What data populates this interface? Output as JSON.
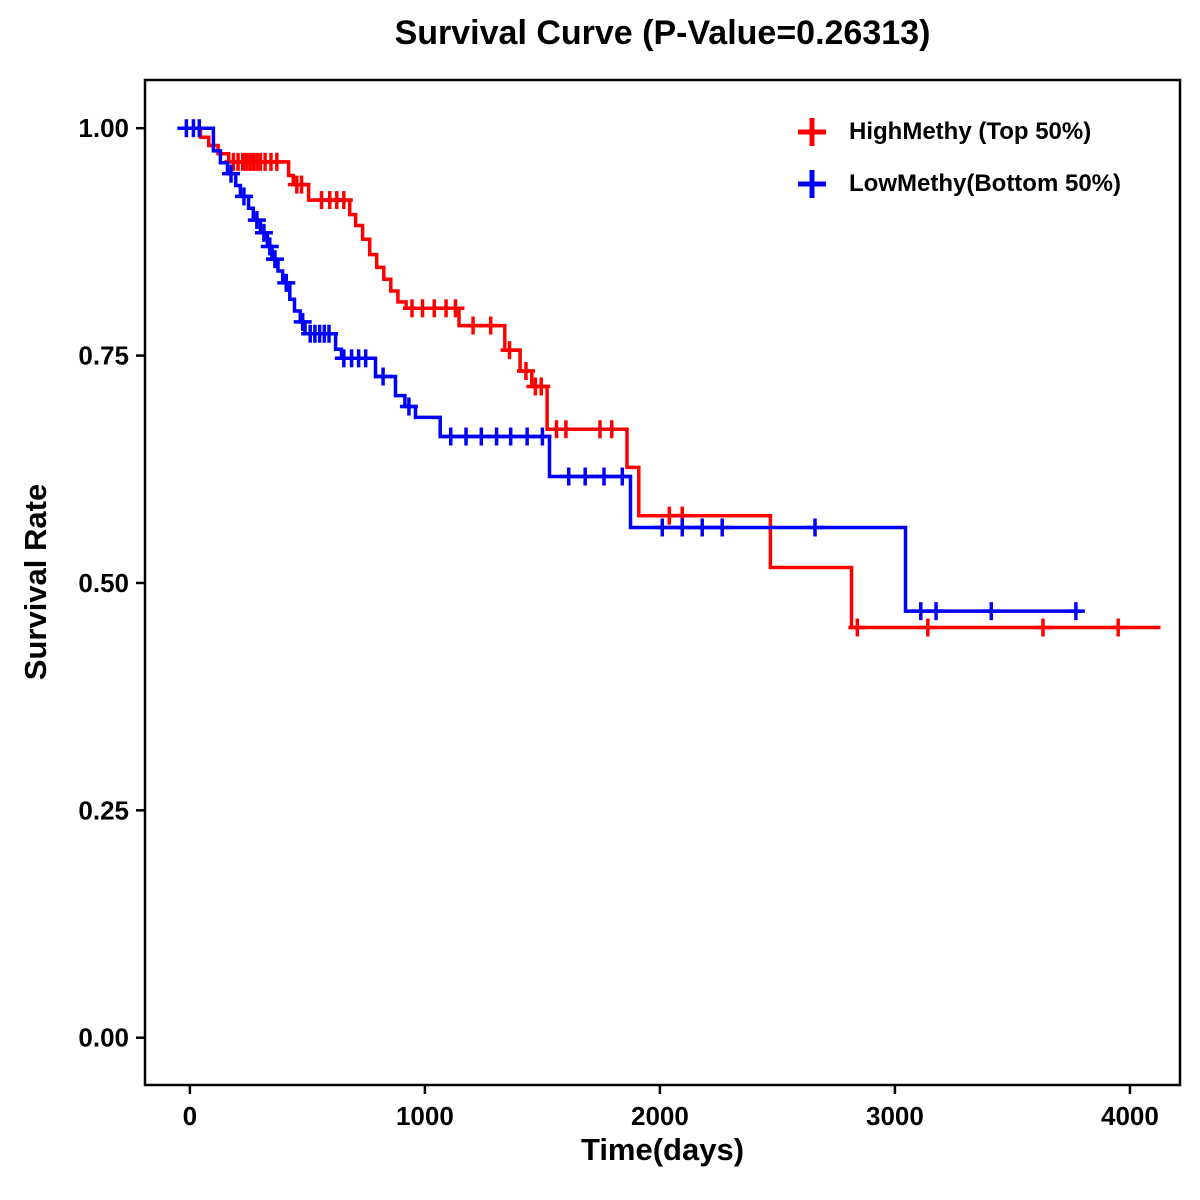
{
  "chart_data": {
    "type": "line",
    "subtype": "kaplan-meier-step",
    "title": "Survival Curve (P-Value=0.26313)",
    "p_value": "0.26313",
    "xlabel": "Time(days)",
    "ylabel": "Survival Rate",
    "xlim": [
      -191,
      4213
    ],
    "ylim": [
      -0.052,
      1.053
    ],
    "grid": false,
    "legend_position": "top-right",
    "xticks": [
      {
        "value": 0,
        "label": "0"
      },
      {
        "value": 1000,
        "label": "1000"
      },
      {
        "value": 2000,
        "label": "2000"
      },
      {
        "value": 3000,
        "label": "3000"
      },
      {
        "value": 4000,
        "label": "4000"
      }
    ],
    "yticks": [
      {
        "value": 0.0,
        "label": "0.00"
      },
      {
        "value": 0.25,
        "label": "0.25"
      },
      {
        "value": 0.5,
        "label": "0.50"
      },
      {
        "value": 0.75,
        "label": "0.75"
      },
      {
        "value": 1.0,
        "label": "1.00"
      }
    ],
    "series": [
      {
        "id": "highmethy",
        "name": "HighMethy (Top 50%)",
        "color": "#FF0000",
        "steps": [
          [
            0,
            1.0
          ],
          [
            45,
            0.99
          ],
          [
            80,
            0.981
          ],
          [
            120,
            0.972
          ],
          [
            165,
            0.963
          ],
          [
            420,
            0.948
          ],
          [
            440,
            0.938
          ],
          [
            505,
            0.921
          ],
          [
            680,
            0.905
          ],
          [
            705,
            0.893
          ],
          [
            735,
            0.878
          ],
          [
            765,
            0.861
          ],
          [
            795,
            0.847
          ],
          [
            825,
            0.834
          ],
          [
            855,
            0.821
          ],
          [
            885,
            0.809
          ],
          [
            920,
            0.802
          ],
          [
            1145,
            0.783
          ],
          [
            1340,
            0.756
          ],
          [
            1405,
            0.733
          ],
          [
            1455,
            0.716
          ],
          [
            1520,
            0.669
          ],
          [
            1860,
            0.627
          ],
          [
            1910,
            0.574
          ],
          [
            2470,
            0.517
          ],
          [
            2815,
            0.451
          ],
          [
            4130,
            0.451
          ]
        ],
        "censors": [
          [
            185,
            0.963
          ],
          [
            205,
            0.963
          ],
          [
            225,
            0.963
          ],
          [
            240,
            0.963
          ],
          [
            255,
            0.963
          ],
          [
            270,
            0.963
          ],
          [
            285,
            0.963
          ],
          [
            300,
            0.963
          ],
          [
            320,
            0.963
          ],
          [
            345,
            0.963
          ],
          [
            370,
            0.963
          ],
          [
            455,
            0.938
          ],
          [
            475,
            0.938
          ],
          [
            560,
            0.921
          ],
          [
            595,
            0.921
          ],
          [
            625,
            0.921
          ],
          [
            655,
            0.921
          ],
          [
            945,
            0.802
          ],
          [
            990,
            0.802
          ],
          [
            1040,
            0.802
          ],
          [
            1090,
            0.802
          ],
          [
            1130,
            0.802
          ],
          [
            1205,
            0.783
          ],
          [
            1280,
            0.783
          ],
          [
            1360,
            0.756
          ],
          [
            1430,
            0.733
          ],
          [
            1470,
            0.716
          ],
          [
            1495,
            0.716
          ],
          [
            1560,
            0.669
          ],
          [
            1600,
            0.669
          ],
          [
            1745,
            0.669
          ],
          [
            1795,
            0.669
          ],
          [
            2040,
            0.574
          ],
          [
            2095,
            0.574
          ],
          [
            2840,
            0.451
          ],
          [
            3140,
            0.451
          ],
          [
            3630,
            0.451
          ],
          [
            3950,
            0.451
          ]
        ]
      },
      {
        "id": "lowmethy",
        "name": "LowMethy(Bottom 50%)",
        "color": "#0000FF",
        "steps": [
          [
            0,
            1.0
          ],
          [
            100,
            0.975
          ],
          [
            130,
            0.962
          ],
          [
            160,
            0.95
          ],
          [
            195,
            0.937
          ],
          [
            215,
            0.925
          ],
          [
            250,
            0.912
          ],
          [
            270,
            0.899
          ],
          [
            300,
            0.885
          ],
          [
            330,
            0.87
          ],
          [
            350,
            0.856
          ],
          [
            375,
            0.843
          ],
          [
            395,
            0.83
          ],
          [
            425,
            0.812
          ],
          [
            445,
            0.799
          ],
          [
            470,
            0.787
          ],
          [
            490,
            0.774
          ],
          [
            620,
            0.757
          ],
          [
            645,
            0.747
          ],
          [
            790,
            0.727
          ],
          [
            875,
            0.706
          ],
          [
            915,
            0.694
          ],
          [
            960,
            0.682
          ],
          [
            1065,
            0.661
          ],
          [
            1530,
            0.617
          ],
          [
            1875,
            0.561
          ],
          [
            3045,
            0.469
          ],
          [
            3790,
            0.469
          ]
        ],
        "censors": [
          [
            -15,
            1.0
          ],
          [
            15,
            1.0
          ],
          [
            40,
            1.0
          ],
          [
            175,
            0.95
          ],
          [
            230,
            0.925
          ],
          [
            285,
            0.899
          ],
          [
            315,
            0.885
          ],
          [
            340,
            0.87
          ],
          [
            362,
            0.856
          ],
          [
            410,
            0.83
          ],
          [
            480,
            0.787
          ],
          [
            512,
            0.774
          ],
          [
            532,
            0.774
          ],
          [
            552,
            0.774
          ],
          [
            572,
            0.774
          ],
          [
            592,
            0.774
          ],
          [
            655,
            0.747
          ],
          [
            688,
            0.747
          ],
          [
            718,
            0.747
          ],
          [
            748,
            0.747
          ],
          [
            822,
            0.727
          ],
          [
            932,
            0.694
          ],
          [
            1110,
            0.661
          ],
          [
            1175,
            0.661
          ],
          [
            1240,
            0.661
          ],
          [
            1305,
            0.661
          ],
          [
            1365,
            0.661
          ],
          [
            1435,
            0.661
          ],
          [
            1500,
            0.661
          ],
          [
            1612,
            0.617
          ],
          [
            1682,
            0.617
          ],
          [
            1762,
            0.617
          ],
          [
            1840,
            0.617
          ],
          [
            2010,
            0.561
          ],
          [
            2095,
            0.561
          ],
          [
            2180,
            0.561
          ],
          [
            2265,
            0.561
          ],
          [
            2660,
            0.561
          ],
          [
            3110,
            0.469
          ],
          [
            3175,
            0.469
          ],
          [
            3410,
            0.469
          ],
          [
            3770,
            0.469
          ]
        ]
      }
    ]
  },
  "styles": {
    "axis_color": "#000000",
    "background": "#ffffff",
    "line_width": 3.5,
    "censor_arm": 9
  }
}
